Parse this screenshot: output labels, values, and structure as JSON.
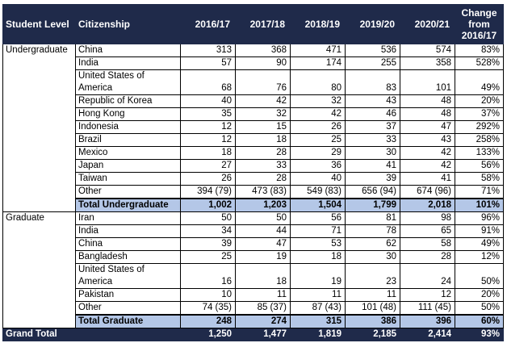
{
  "headers": {
    "level": "Student Level",
    "citizenship": "Citizenship",
    "years": [
      "2016/17",
      "2017/18",
      "2018/19",
      "2019/20",
      "2020/21"
    ],
    "change": "Change from 2016/17"
  },
  "undergraduate": {
    "label": "Undergraduate",
    "rows": [
      {
        "c": "China",
        "v": [
          "313",
          "368",
          "471",
          "536",
          "574",
          "83%"
        ]
      },
      {
        "c": "India",
        "v": [
          "57",
          "90",
          "174",
          "255",
          "358",
          "528%"
        ]
      },
      {
        "c": "United States of America",
        "v": [
          "68",
          "76",
          "80",
          "83",
          "101",
          "49%"
        ]
      },
      {
        "c": "Republic of Korea",
        "v": [
          "40",
          "42",
          "32",
          "43",
          "48",
          "20%"
        ]
      },
      {
        "c": "Hong Kong",
        "v": [
          "35",
          "32",
          "42",
          "46",
          "48",
          "37%"
        ]
      },
      {
        "c": "Indonesia",
        "v": [
          "12",
          "15",
          "26",
          "37",
          "47",
          "292%"
        ]
      },
      {
        "c": "Brazil",
        "v": [
          "12",
          "18",
          "25",
          "33",
          "43",
          "258%"
        ]
      },
      {
        "c": "Mexico",
        "v": [
          "18",
          "28",
          "29",
          "30",
          "42",
          "133%"
        ]
      },
      {
        "c": "Japan",
        "v": [
          "27",
          "33",
          "36",
          "41",
          "42",
          "56%"
        ]
      },
      {
        "c": "Taiwan",
        "v": [
          "26",
          "28",
          "40",
          "39",
          "41",
          "58%"
        ]
      },
      {
        "c": "Other",
        "v": [
          "394 (79)",
          "473 (83)",
          "549 (83)",
          "656 (94)",
          "674 (96)",
          "71%"
        ]
      }
    ],
    "total": {
      "c": "Total Undergraduate",
      "v": [
        "1,002",
        "1,203",
        "1,504",
        "1,799",
        "2,018",
        "101%"
      ]
    }
  },
  "graduate": {
    "label": "Graduate",
    "rows": [
      {
        "c": "Iran",
        "v": [
          "50",
          "50",
          "56",
          "81",
          "98",
          "96%"
        ]
      },
      {
        "c": "India",
        "v": [
          "34",
          "44",
          "71",
          "78",
          "65",
          "91%"
        ]
      },
      {
        "c": "China",
        "v": [
          "39",
          "47",
          "53",
          "62",
          "58",
          "49%"
        ]
      },
      {
        "c": "Bangladesh",
        "v": [
          "25",
          "19",
          "18",
          "30",
          "28",
          "12%"
        ]
      },
      {
        "c": "United States of America",
        "v": [
          "16",
          "18",
          "19",
          "23",
          "24",
          "50%"
        ]
      },
      {
        "c": "Pakistan",
        "v": [
          "10",
          "11",
          "11",
          "11",
          "12",
          "20%"
        ]
      },
      {
        "c": "Other",
        "v": [
          "74 (35)",
          "85 (37)",
          "87 (43)",
          "101 (48)",
          "111 (45)",
          "50%"
        ]
      }
    ],
    "total": {
      "c": "Total Graduate",
      "v": [
        "248",
        "274",
        "315",
        "386",
        "396",
        "60%"
      ]
    }
  },
  "grand": {
    "label": "Grand Total",
    "v": [
      "1,250",
      "1,477",
      "1,819",
      "2,185",
      "2,414",
      "93%"
    ]
  }
}
